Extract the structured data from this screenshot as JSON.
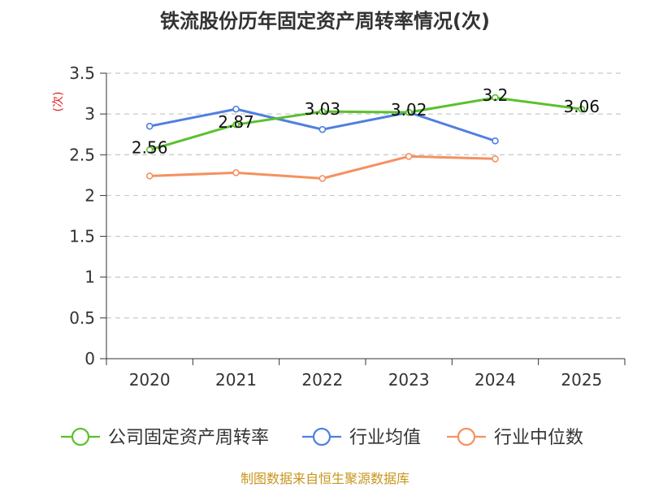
{
  "chart_data": {
    "type": "line",
    "title": "铁流股份历年固定资产周转率情况(次)",
    "ylabel": "(次)",
    "xlabel": "",
    "categories": [
      "2020",
      "2021",
      "2022",
      "2023",
      "2024",
      "2025"
    ],
    "ylim": [
      0,
      3.5
    ],
    "yticks": [
      "0",
      "0.5",
      "1",
      "1.5",
      "2",
      "2.5",
      "3",
      "3.5"
    ],
    "grid": true,
    "legend_position": "bottom",
    "series": [
      {
        "name": "公司固定资产周转率",
        "color": "#5ac12e",
        "values": [
          2.56,
          2.87,
          3.03,
          3.02,
          3.2,
          3.06
        ],
        "labels": [
          "2.56",
          "2.87",
          "3.03",
          "3.02",
          "3.2",
          "3.06"
        ]
      },
      {
        "name": "行业均值",
        "color": "#4f7fe0",
        "values": [
          2.85,
          3.06,
          2.81,
          3.02,
          2.67,
          null
        ]
      },
      {
        "name": "行业中位数",
        "color": "#f59160",
        "values": [
          2.24,
          2.28,
          2.21,
          2.48,
          2.45,
          null
        ]
      }
    ]
  },
  "source": "制图数据来自恒生聚源数据库"
}
